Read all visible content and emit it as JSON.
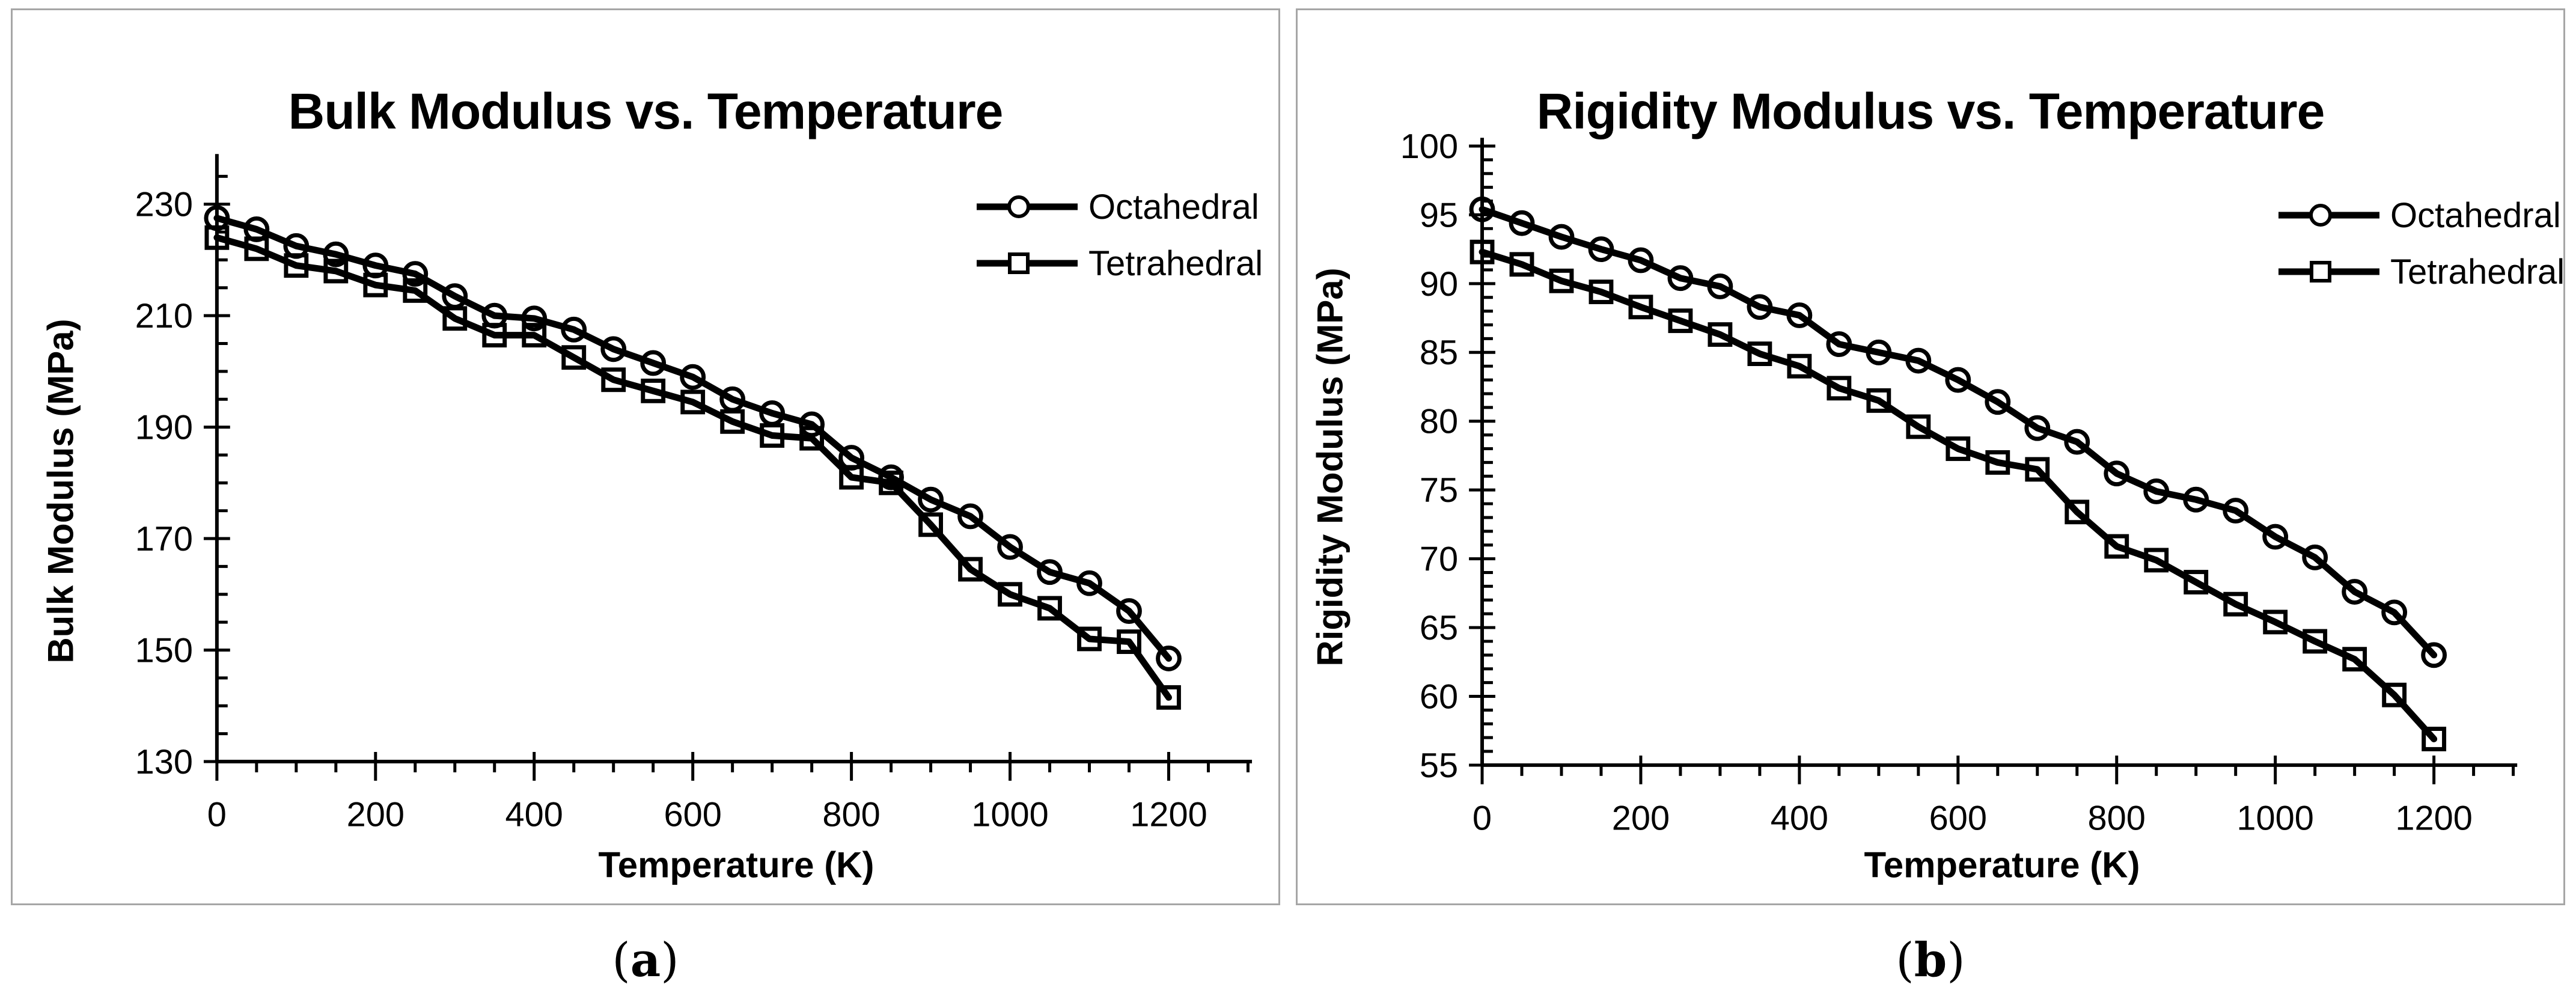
{
  "figure": {
    "background": "#ffffff",
    "panel_border_color": "#a6a6a6",
    "ink_color": "#000000"
  },
  "captions": [
    {
      "open": "(",
      "label": "a",
      "close": ")"
    },
    {
      "open": "(",
      "label": "b",
      "close": ")"
    }
  ],
  "chart_data": [
    {
      "type": "line",
      "title": "Bulk Modulus vs. Temperature",
      "xlabel": "Temperature (K)",
      "ylabel": "Bulk Modulus (MPa)",
      "legend_position": "inside-top-right",
      "grid": false,
      "xlim": [
        0,
        1300
      ],
      "ylim": [
        130,
        235
      ],
      "x_ticks": [
        0,
        200,
        400,
        600,
        800,
        1000,
        1200
      ],
      "y_ticks": [
        130,
        150,
        170,
        190,
        210,
        230
      ],
      "x_minor_step": 50,
      "y_minor_step": 5,
      "x": [
        0,
        50,
        100,
        150,
        200,
        250,
        300,
        350,
        400,
        450,
        500,
        550,
        600,
        650,
        700,
        750,
        800,
        850,
        900,
        950,
        1000,
        1050,
        1100,
        1150,
        1200
      ],
      "series": [
        {
          "name": "Octahedral",
          "marker": "circle",
          "color": "#000000",
          "values": [
            227.5,
            225.5,
            222.5,
            221,
            219,
            217.5,
            213.5,
            210,
            209.5,
            207.5,
            204,
            201.5,
            199,
            195,
            192.5,
            190.5,
            184.5,
            181,
            177,
            174,
            168.5,
            164,
            162,
            157,
            148.5
          ]
        },
        {
          "name": "Tetrahedral",
          "marker": "square",
          "color": "#000000",
          "values": [
            224,
            222,
            219,
            218,
            215.5,
            214.5,
            209.5,
            206.5,
            206.5,
            202.5,
            198.5,
            196.5,
            194.5,
            191,
            188.5,
            188,
            181,
            180,
            172.5,
            164.5,
            160,
            157.5,
            152,
            151.5,
            141.5
          ]
        }
      ]
    },
    {
      "type": "line",
      "title": "Rigidity Modulus vs. Temperature",
      "xlabel": "Temperature (K)",
      "ylabel": "Rigidity Modulus (MPa)",
      "legend_position": "inside-top-right",
      "grid": false,
      "xlim": [
        0,
        1300
      ],
      "ylim": [
        55,
        100
      ],
      "x_ticks": [
        0,
        200,
        400,
        600,
        800,
        1000,
        1200
      ],
      "y_ticks": [
        55,
        60,
        65,
        70,
        75,
        80,
        85,
        90,
        95,
        100
      ],
      "x_minor_step": 50,
      "y_minor_step": 1,
      "x": [
        0,
        50,
        100,
        150,
        200,
        250,
        300,
        350,
        400,
        450,
        500,
        550,
        600,
        650,
        700,
        750,
        800,
        850,
        900,
        950,
        1000,
        1050,
        1100,
        1150,
        1200
      ],
      "series": [
        {
          "name": "Octahedral",
          "marker": "circle",
          "color": "#000000",
          "values": [
            95.4,
            94.4,
            93.4,
            92.5,
            91.7,
            90.4,
            89.8,
            88.3,
            87.7,
            85.6,
            85,
            84.4,
            83,
            81.4,
            79.5,
            78.5,
            76.2,
            74.9,
            74.3,
            73.5,
            71.6,
            70.1,
            67.6,
            66.1,
            63
          ]
        },
        {
          "name": "Tetrahedral",
          "marker": "square",
          "color": "#000000",
          "values": [
            92.3,
            91.4,
            90.2,
            89.4,
            88.3,
            87.3,
            86.3,
            84.9,
            84,
            82.4,
            81.5,
            79.6,
            78,
            77,
            76.5,
            73.4,
            70.9,
            69.9,
            68.3,
            66.7,
            65.4,
            64,
            62.7,
            60.1,
            56.9
          ]
        }
      ]
    }
  ]
}
